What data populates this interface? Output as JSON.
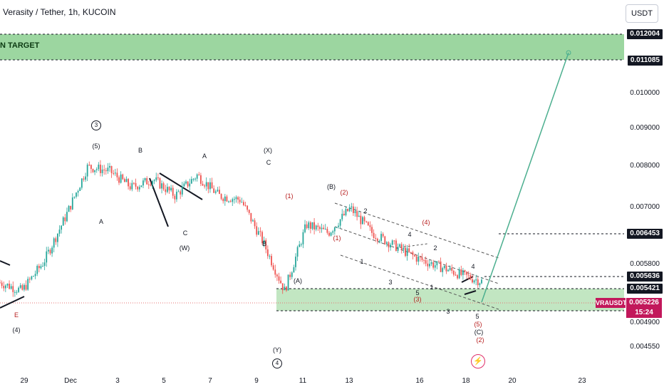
{
  "title": "Verasity / Tether, 1h, KUCOIN",
  "currency": "USDT",
  "target_label": "N TARGET",
  "current": {
    "symbol": "VRAUSDT",
    "price": "0.005226",
    "countdown": "15:24"
  },
  "price_tags": {
    "upper_box_top": "0.012004",
    "upper_box_bottom": "0.011085",
    "level_1": "0.006453",
    "level_2": "0.005636",
    "level_3": "0.005421"
  },
  "y_ticks": [
    "0.010000",
    "0.009000",
    "0.008000",
    "0.007000",
    "0.005800",
    "0.004900",
    "0.004550"
  ],
  "x_ticks": [
    "29",
    "Dec",
    "3",
    "5",
    "7",
    "9",
    "11",
    "13",
    "16",
    "18",
    "20",
    "23"
  ],
  "wave_labels": {
    "w3_circle": "3",
    "w5a": "(5)",
    "wB1": "B",
    "wA1": "A",
    "wA2": "A",
    "wC1": "C",
    "wW": "(W)",
    "wX": "(X)",
    "wC2": "C",
    "wB2": "B",
    "w1r": "(1)",
    "wA3": "(A)",
    "wY": "(Y)",
    "w4_circle": "4",
    "wE": "E",
    "w4p": "(4)",
    "wBB": "(B)",
    "w2r": "(2)",
    "w1r2": "(1)",
    "w2k": "2",
    "w4k": "4",
    "w4r": "(4)",
    "w2k2": "2",
    "w1k": "1",
    "w3k": "3",
    "w5k": "5",
    "w3r": "(3)",
    "w1k2": "1",
    "w4k2": "4",
    "w3k2": "3",
    "w5k2": "5",
    "w5r": "(5)",
    "wCC": "(C)",
    "w2r2": "(2)"
  },
  "colors": {
    "up": "#26a69a",
    "down": "#ef5350",
    "zone": "#8bcf8f",
    "projection": "#4caf8f"
  },
  "chart_data": {
    "type": "candlestick",
    "title": "Verasity / Tether, 1h, KUCOIN",
    "x_categories": [
      "29",
      "Dec",
      "3",
      "5",
      "7",
      "9",
      "11",
      "13",
      "16",
      "18",
      "20",
      "23"
    ],
    "price_path": [
      0.0052,
      0.005,
      0.0057,
      0.0068,
      0.008,
      0.0079,
      0.0075,
      0.0077,
      0.0073,
      0.0078,
      0.0073,
      0.0072,
      0.0062,
      0.005,
      0.0066,
      0.0064,
      0.007,
      0.0064,
      0.0061,
      0.0058,
      0.0056,
      0.0054,
      0.00523
    ],
    "zones": [
      {
        "from": 0.011085,
        "to": 0.012004,
        "label": "N TARGET"
      },
      {
        "from": 0.0051,
        "to": 0.005421
      }
    ],
    "levels": [
      0.012004,
      0.011085,
      0.006453,
      0.005636,
      0.005421
    ],
    "current_price": 0.005226,
    "projection_target": 0.0116
  }
}
